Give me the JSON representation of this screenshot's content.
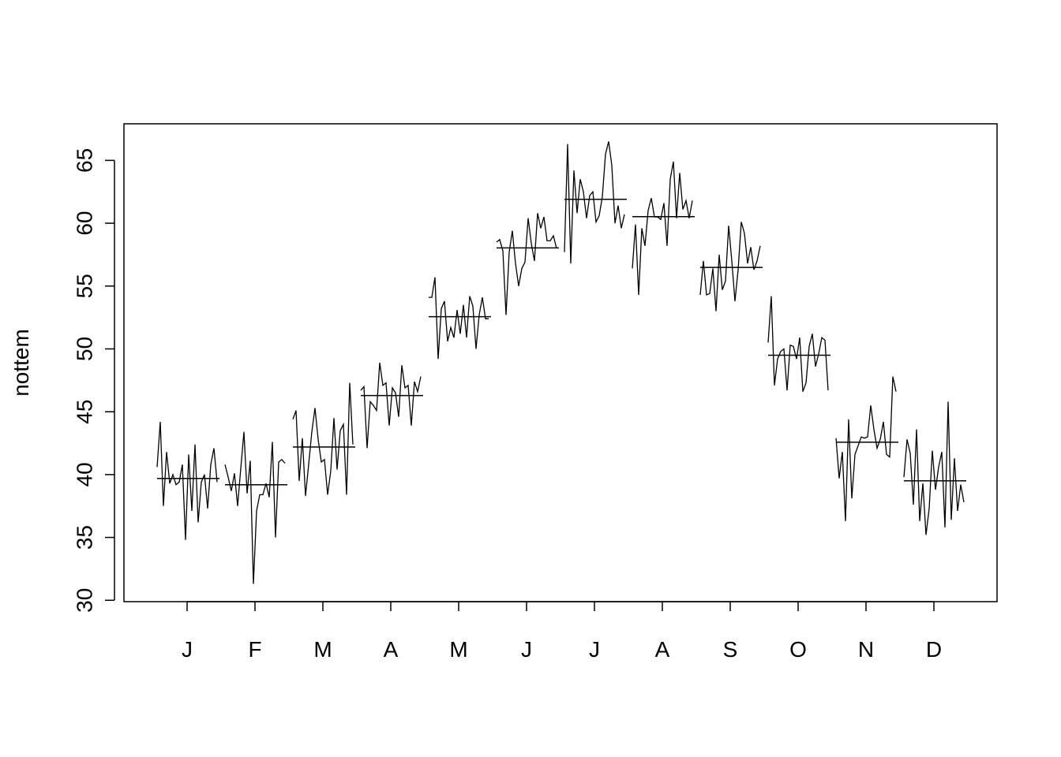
{
  "chart_data": {
    "type": "monthplot",
    "ylabel": "nottem",
    "categories": [
      "J",
      "F",
      "M",
      "A",
      "M",
      "J",
      "J",
      "A",
      "S",
      "O",
      "N",
      "D"
    ],
    "values": [
      [
        40.6,
        44.2,
        37.5,
        41.8,
        39.3,
        40.0,
        39.2,
        39.4,
        40.8,
        34.8,
        41.6,
        37.1,
        42.4,
        36.2,
        39.4,
        40.0,
        37.3,
        40.8,
        42.1,
        39.4
      ],
      [
        40.8,
        39.8,
        38.7,
        40.1,
        37.5,
        40.5,
        43.4,
        38.5,
        41.1,
        31.3,
        37.1,
        38.4,
        38.4,
        39.3,
        38.2,
        42.6,
        35.0,
        41.0,
        41.2,
        40.9
      ],
      [
        44.4,
        45.1,
        39.5,
        42.9,
        38.3,
        40.8,
        43.4,
        45.3,
        42.8,
        41.0,
        41.2,
        38.4,
        40.3,
        44.5,
        40.4,
        43.5,
        44.0,
        38.4,
        47.3,
        42.4
      ],
      [
        46.7,
        47.0,
        42.1,
        45.8,
        45.5,
        45.1,
        48.9,
        47.1,
        47.3,
        43.9,
        46.9,
        46.5,
        44.6,
        48.7,
        46.9,
        47.1,
        43.9,
        47.4,
        46.6,
        47.8
      ],
      [
        54.1,
        54.1,
        55.7,
        49.2,
        53.2,
        53.8,
        50.6,
        51.7,
        50.9,
        53.1,
        51.2,
        53.5,
        50.9,
        54.2,
        53.4,
        50.0,
        52.7,
        54.1,
        52.4,
        52.4
      ],
      [
        58.5,
        58.7,
        57.8,
        52.7,
        57.7,
        59.4,
        56.8,
        55.0,
        56.4,
        56.9,
        60.4,
        58.4,
        57.0,
        60.8,
        59.6,
        60.5,
        58.6,
        58.6,
        59.0,
        58.0
      ],
      [
        57.7,
        66.3,
        56.8,
        64.2,
        60.8,
        63.5,
        62.5,
        60.4,
        62.2,
        62.5,
        60.1,
        60.6,
        62.1,
        65.5,
        66.5,
        64.6,
        60.0,
        61.4,
        59.6,
        60.7
      ],
      [
        56.4,
        59.9,
        54.3,
        59.6,
        58.2,
        61.0,
        62.0,
        60.5,
        60.5,
        60.3,
        61.6,
        58.2,
        63.5,
        64.9,
        60.4,
        64.0,
        61.1,
        61.8,
        60.4,
        61.8
      ],
      [
        54.3,
        57.0,
        54.3,
        54.4,
        56.4,
        53.0,
        57.5,
        54.7,
        55.4,
        59.8,
        57.0,
        53.8,
        56.3,
        60.1,
        59.2,
        56.8,
        58.1,
        56.3,
        57.0,
        58.2
      ],
      [
        50.5,
        54.2,
        47.1,
        49.2,
        49.8,
        50.0,
        46.7,
        50.3,
        50.2,
        49.2,
        50.9,
        46.6,
        47.3,
        50.2,
        51.2,
        48.6,
        49.6,
        50.9,
        50.7,
        46.7
      ],
      [
        42.9,
        39.7,
        41.8,
        36.3,
        44.4,
        38.1,
        41.6,
        42.3,
        43.0,
        42.9,
        43.0,
        45.5,
        43.6,
        42.1,
        42.8,
        44.2,
        41.6,
        41.4,
        47.8,
        46.6
      ],
      [
        39.8,
        42.8,
        41.7,
        37.6,
        43.6,
        36.3,
        39.3,
        35.2,
        37.3,
        41.9,
        38.8,
        40.6,
        41.8,
        35.8,
        45.8,
        36.4,
        41.3,
        37.1,
        39.2,
        37.8
      ]
    ],
    "means": [
      39.695,
      39.19,
      42.195,
      46.29,
      52.56,
      58.04,
      61.9,
      60.52,
      56.48,
      49.495,
      42.58,
      39.505
    ],
    "color": "#000000",
    "ylim": [
      29.89,
      67.91
    ],
    "yticks": [
      30,
      35,
      40,
      45,
      50,
      55,
      60,
      65
    ]
  }
}
